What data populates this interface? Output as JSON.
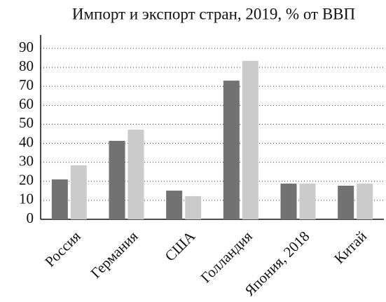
{
  "chart_data": {
    "type": "bar",
    "title": "Импорт и экспорт стран, 2019, % от ВВП",
    "categories": [
      "Россия",
      "Германия",
      "США",
      "Голландия",
      "Япония, 2018",
      "Китай"
    ],
    "series": [
      {
        "color": "#727272",
        "values": [
          21,
          41.3,
          15.1,
          73,
          18.8,
          17.7
        ]
      },
      {
        "color": "#cbcbcb",
        "values": [
          28.4,
          47.2,
          12.2,
          83.4,
          18.8,
          18.8
        ]
      }
    ],
    "ylim": [
      0,
      97
    ],
    "yticks": [
      0,
      10,
      20,
      30,
      40,
      50,
      60,
      70,
      80,
      90
    ],
    "grid": true
  }
}
